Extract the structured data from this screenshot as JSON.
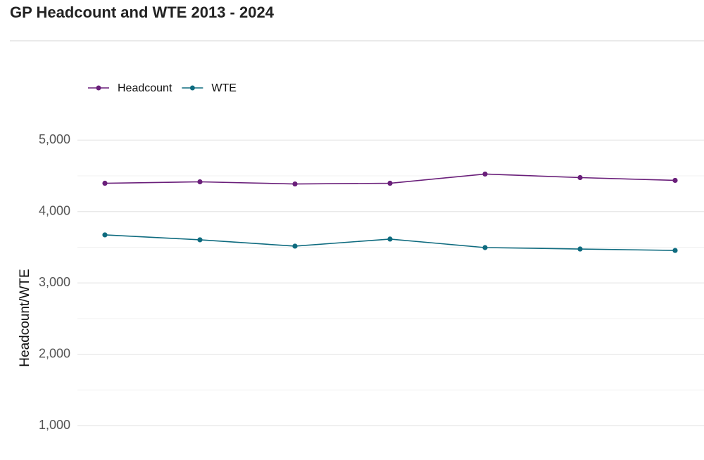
{
  "chart_data": {
    "type": "line",
    "title": "GP Headcount and WTE 2013 - 2024",
    "y_label": "Headcount/WTE",
    "categories": [
      null,
      null,
      null,
      null,
      null,
      null,
      null
    ],
    "series": [
      {
        "name": "Headcount",
        "color": "#6a1f7a",
        "values": [
          4396,
          4416,
          4386,
          4396,
          4525,
          4475,
          4436
        ]
      },
      {
        "name": "WTE",
        "color": "#0e6b7f",
        "values": [
          3673,
          3604,
          3515,
          3614,
          3495,
          3475,
          3455
        ]
      }
    ],
    "ylim": [
      520,
      5400
    ],
    "yticks": [
      {
        "value": 1000,
        "label": "1,000"
      },
      {
        "value": 2000,
        "label": "2,000"
      },
      {
        "value": 3000,
        "label": "3,000"
      },
      {
        "value": 4000,
        "label": "4,000"
      },
      {
        "value": 5000,
        "label": "5,000"
      }
    ],
    "grid": true,
    "legend": "top-left"
  }
}
